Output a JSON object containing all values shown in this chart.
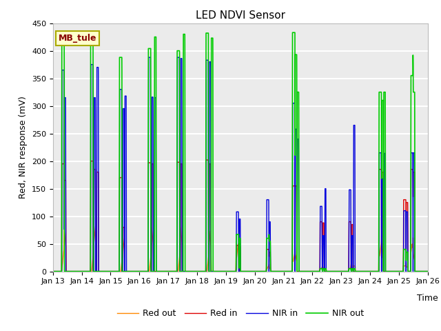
{
  "title": "LED NDVI Sensor",
  "ylabel": "Red, NIR response (mV)",
  "xlabel": "Time",
  "annotation": "MB_tule",
  "ylim": [
    0,
    450
  ],
  "colors": {
    "red_in": "#dd0000",
    "nir_in": "#0000dd",
    "red_out": "#ff8800",
    "nir_out": "#00cc00"
  },
  "legend": [
    "Red in",
    "NIR in",
    "Red out",
    "NIR out"
  ],
  "x_tick_labels": [
    "Jan 13",
    "Jan 14",
    "Jan 15",
    "Jan 16",
    "Jan 17",
    "Jan 18",
    "Jan 19",
    "Jan 20",
    "Jan 21",
    "Jan 22",
    "Jan 23",
    "Jan 24",
    "Jan 25",
    "Jan 26"
  ],
  "x_tick_positions": [
    0,
    1,
    2,
    3,
    4,
    5,
    6,
    7,
    8,
    9,
    10,
    11,
    12,
    13
  ],
  "yticks": [
    0,
    50,
    100,
    150,
    200,
    250,
    300,
    350,
    400,
    450
  ],
  "figsize": [
    6.4,
    4.8
  ],
  "dpi": 100
}
